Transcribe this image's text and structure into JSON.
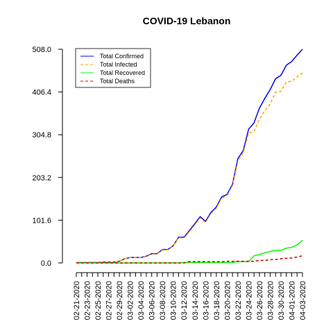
{
  "chart_data": {
    "type": "line",
    "title": "COVID-19 Lebanon",
    "xlabel": "",
    "ylabel": "",
    "ylim": [
      0,
      508
    ],
    "y_ticks": [
      "0.0",
      "101.6",
      "203.2",
      "304.8",
      "406.4",
      "508.0"
    ],
    "y_tick_values": [
      0,
      101.6,
      203.2,
      304.8,
      406.4,
      508
    ],
    "x_tick_labels": [
      "02-21-2020",
      "02-23-2020",
      "02-25-2020",
      "02-27-2020",
      "02-29-2020",
      "03-02-2020",
      "03-04-2020",
      "03-06-2020",
      "03-08-2020",
      "03-10-2020",
      "03-12-2020",
      "03-14-2020",
      "03-16-2020",
      "03-18-2020",
      "03-20-2020",
      "03-22-2020",
      "03-24-2020",
      "03-26-2020",
      "03-28-2020",
      "03-30-2020",
      "04-01-2020",
      "04-03-2020"
    ],
    "x": [
      "02-21-2020",
      "02-22-2020",
      "02-23-2020",
      "02-24-2020",
      "02-25-2020",
      "02-26-2020",
      "02-27-2020",
      "02-28-2020",
      "02-29-2020",
      "03-01-2020",
      "03-02-2020",
      "03-03-2020",
      "03-04-2020",
      "03-05-2020",
      "03-06-2020",
      "03-07-2020",
      "03-08-2020",
      "03-09-2020",
      "03-10-2020",
      "03-11-2020",
      "03-12-2020",
      "03-13-2020",
      "03-14-2020",
      "03-15-2020",
      "03-16-2020",
      "03-17-2020",
      "03-18-2020",
      "03-19-2020",
      "03-20-2020",
      "03-21-2020",
      "03-22-2020",
      "03-23-2020",
      "03-24-2020",
      "03-25-2020",
      "03-26-2020",
      "03-27-2020",
      "03-28-2020",
      "03-29-2020",
      "03-30-2020",
      "03-31-2020",
      "04-01-2020",
      "04-02-2020",
      "04-03-2020"
    ],
    "series": [
      {
        "name": "Total Confirmed",
        "color": "#0000ff",
        "dash": "solid",
        "values": [
          1,
          1,
          1,
          1,
          1,
          2,
          2,
          2,
          4,
          10,
          13,
          13,
          13,
          16,
          22,
          22,
          32,
          32,
          41,
          61,
          61,
          77,
          93,
          110,
          99,
          120,
          133,
          157,
          163,
          187,
          248,
          267,
          318,
          333,
          368,
          391,
          412,
          438,
          446,
          470,
          479,
          494,
          508
        ]
      },
      {
        "name": "Total Infected",
        "color": "#ffa500",
        "dash": "dashed",
        "values": [
          1,
          1,
          1,
          1,
          1,
          2,
          2,
          2,
          4,
          10,
          13,
          13,
          13,
          15,
          21,
          21,
          31,
          31,
          40,
          60,
          59,
          74,
          90,
          107,
          96,
          117,
          130,
          154,
          160,
          184,
          241,
          262,
          309,
          312,
          342,
          362,
          378,
          406,
          408,
          430,
          432,
          442,
          452
        ]
      },
      {
        "name": "Total Recovered",
        "color": "#00ff00",
        "dash": "solid",
        "values": [
          0,
          0,
          0,
          0,
          0,
          0,
          0,
          0,
          0,
          0,
          0,
          0,
          0,
          0,
          0,
          0,
          0,
          0,
          0,
          0,
          1,
          1,
          1,
          1,
          1,
          1,
          1,
          1,
          1,
          1,
          3,
          3,
          3,
          17,
          20,
          24,
          27,
          30,
          30,
          35,
          37,
          43,
          54
        ]
      },
      {
        "name": "Total Deaths",
        "color": "#cd0000",
        "dash": "dashed",
        "values": [
          0,
          0,
          0,
          0,
          0,
          0,
          0,
          0,
          0,
          0,
          0,
          0,
          0,
          0,
          0,
          0,
          0,
          0,
          0,
          0,
          0,
          3,
          3,
          3,
          3,
          3,
          3,
          3,
          4,
          4,
          4,
          4,
          4,
          4,
          6,
          6,
          8,
          8,
          10,
          11,
          12,
          14,
          17
        ]
      }
    ],
    "legend_position": "top-left",
    "grid": false
  }
}
